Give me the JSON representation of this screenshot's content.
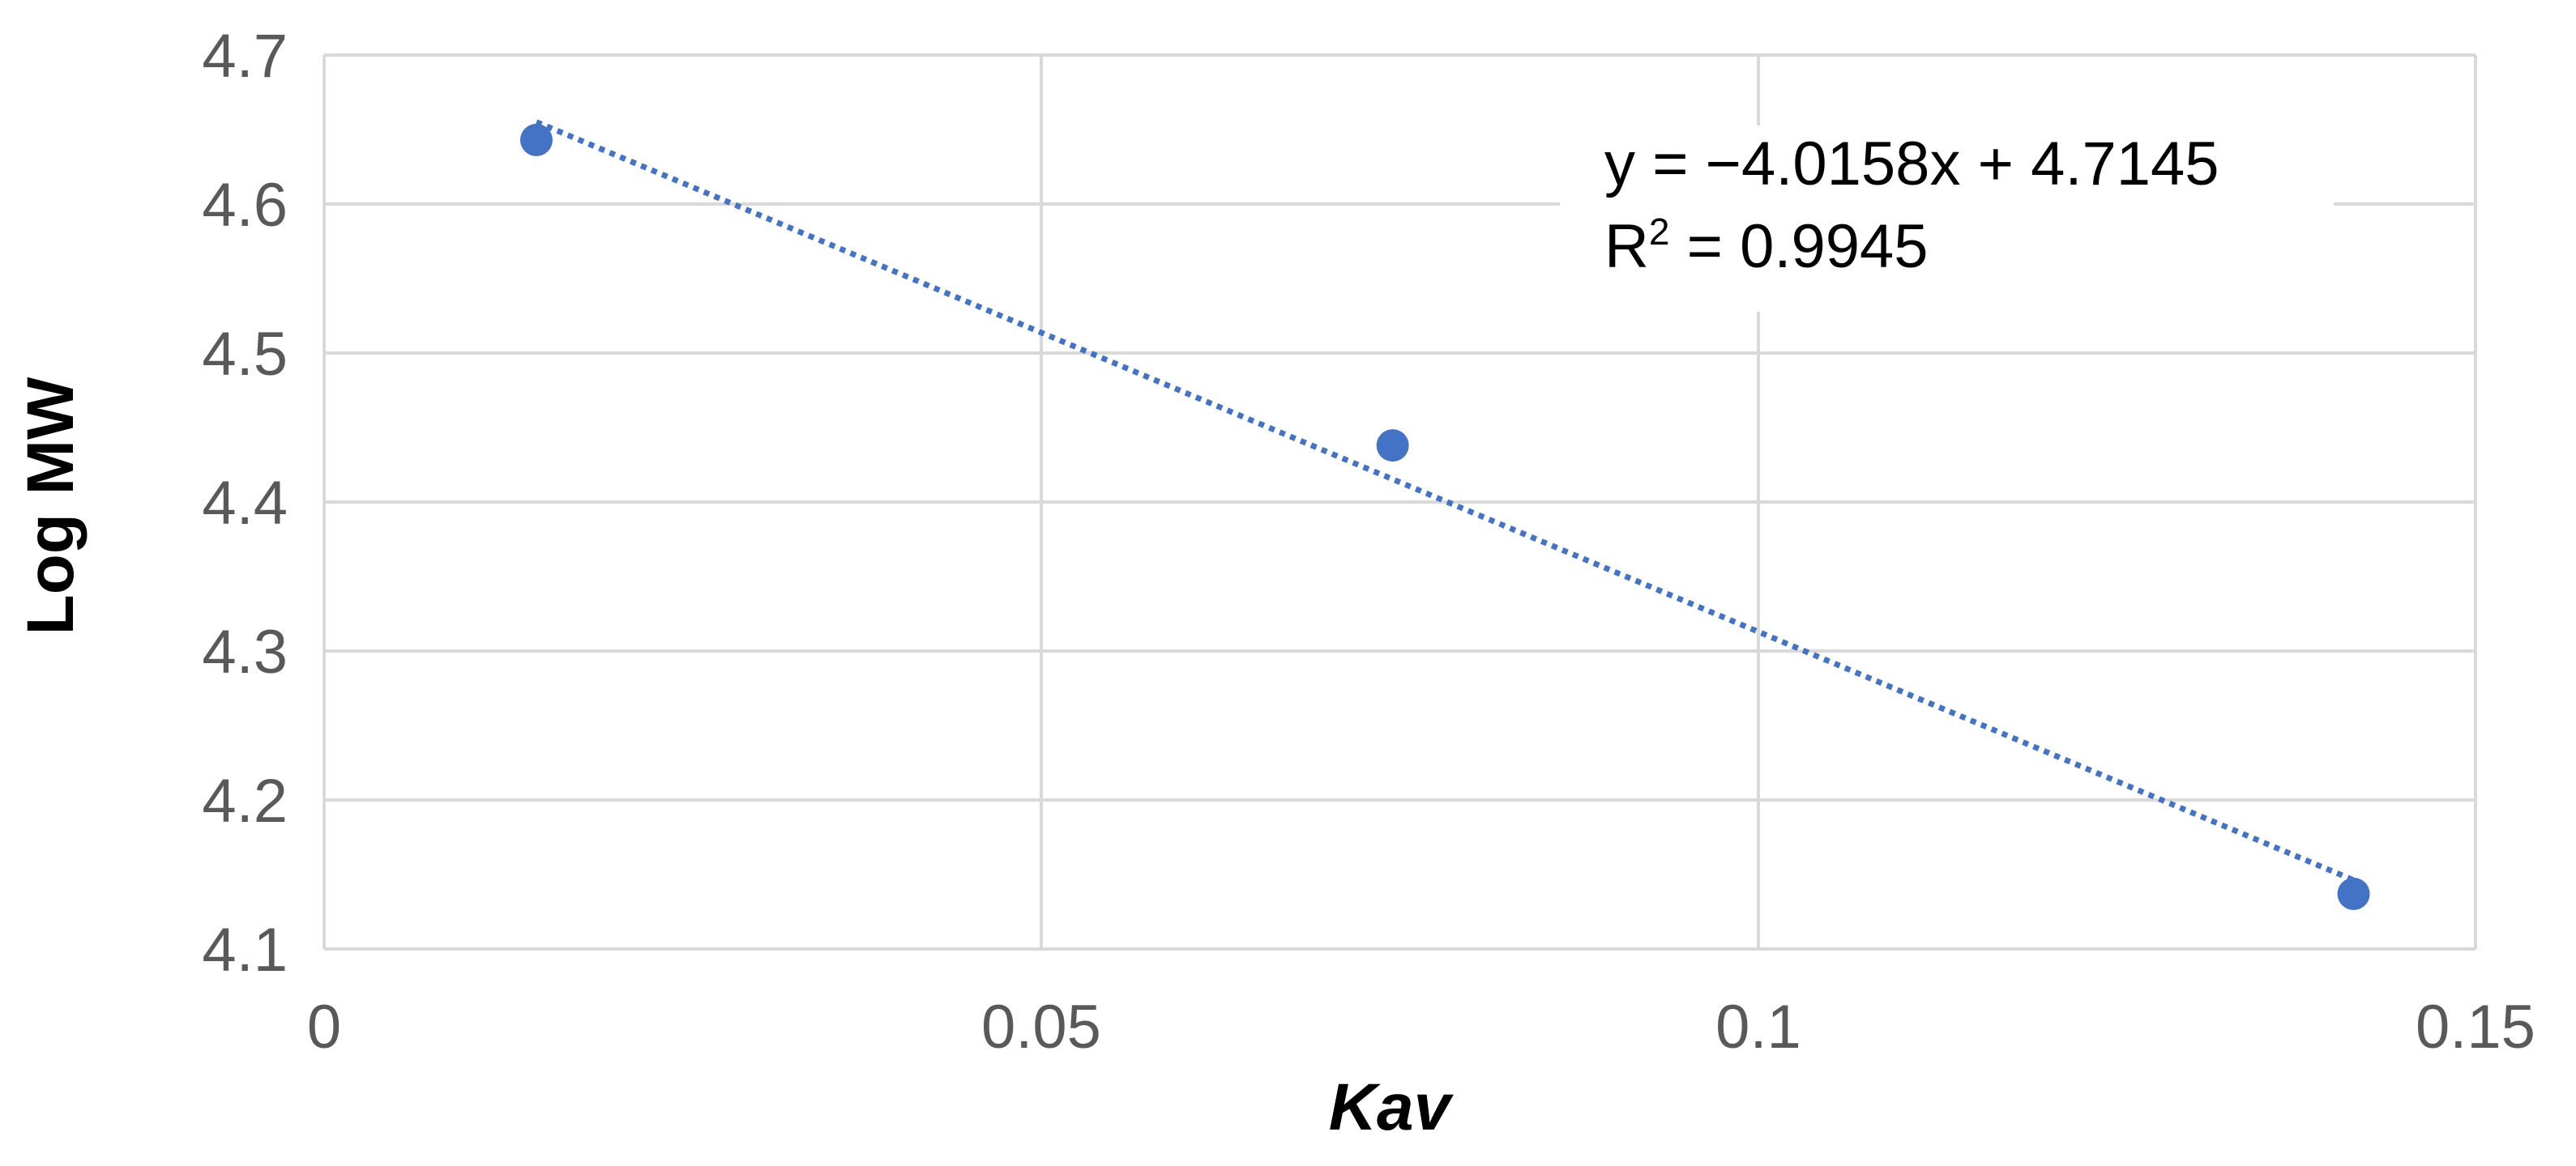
{
  "chart_data": {
    "type": "scatter",
    "xlabel": "Kav",
    "ylabel": "Log MW",
    "xlim": [
      0,
      0.15
    ],
    "ylim": [
      4.1,
      4.7
    ],
    "x_ticks": [
      "0",
      "0.05",
      "0.1",
      "0.15"
    ],
    "y_ticks": [
      "4.1",
      "4.2",
      "4.3",
      "4.4",
      "4.5",
      "4.6",
      "4.7"
    ],
    "grid": true,
    "series": [
      {
        "points": [
          {
            "x": 0.0148,
            "y": 4.643
          },
          {
            "x": 0.0745,
            "y": 4.438
          },
          {
            "x": 0.1415,
            "y": 4.137
          }
        ]
      }
    ],
    "trendline": {
      "type": "linear",
      "slope": -4.0158,
      "intercept": 4.7145,
      "x_range": [
        0.0148,
        0.1415
      ],
      "equation_label": "y = −4.0158x + 4.7145",
      "r2_prefix": "R",
      "r2_sup": "2",
      "r2_value": " = 0.9945"
    },
    "colors": {
      "marker": "#4472C4",
      "trendline": "#4472C4",
      "grid": "#D9D9D9",
      "tick_text": "#595959",
      "axis_title": "#000000"
    }
  }
}
